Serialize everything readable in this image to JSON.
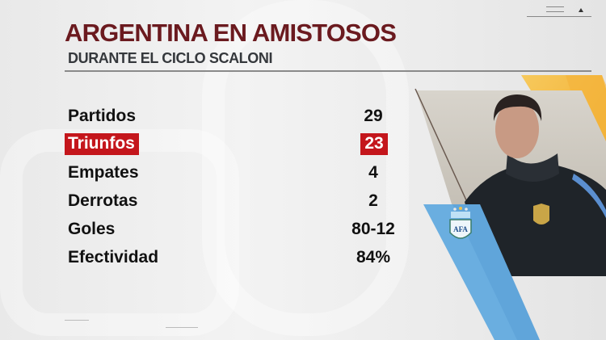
{
  "header": {
    "title": "ARGENTINA EN AMISTOSOS",
    "subtitle": "DURANTE EL CICLO SCALONI"
  },
  "stats": [
    {
      "label": "Partidos",
      "value": "29",
      "highlighted": false
    },
    {
      "label": "Triunfos",
      "value": "23",
      "highlighted": true
    },
    {
      "label": "Empates",
      "value": "4",
      "highlighted": false
    },
    {
      "label": "Derrotas",
      "value": "2",
      "highlighted": false
    },
    {
      "label": "Goles",
      "value": "80-12",
      "highlighted": false
    },
    {
      "label": "Efectividad",
      "value": "84%",
      "highlighted": false
    }
  ],
  "badge": {
    "logo_text": "AFA"
  },
  "colors": {
    "title": "#6b1a1f",
    "highlight": "#c4161c",
    "blue_stripe": "#6aaee0",
    "yellow_stripe": "#f5b942"
  }
}
